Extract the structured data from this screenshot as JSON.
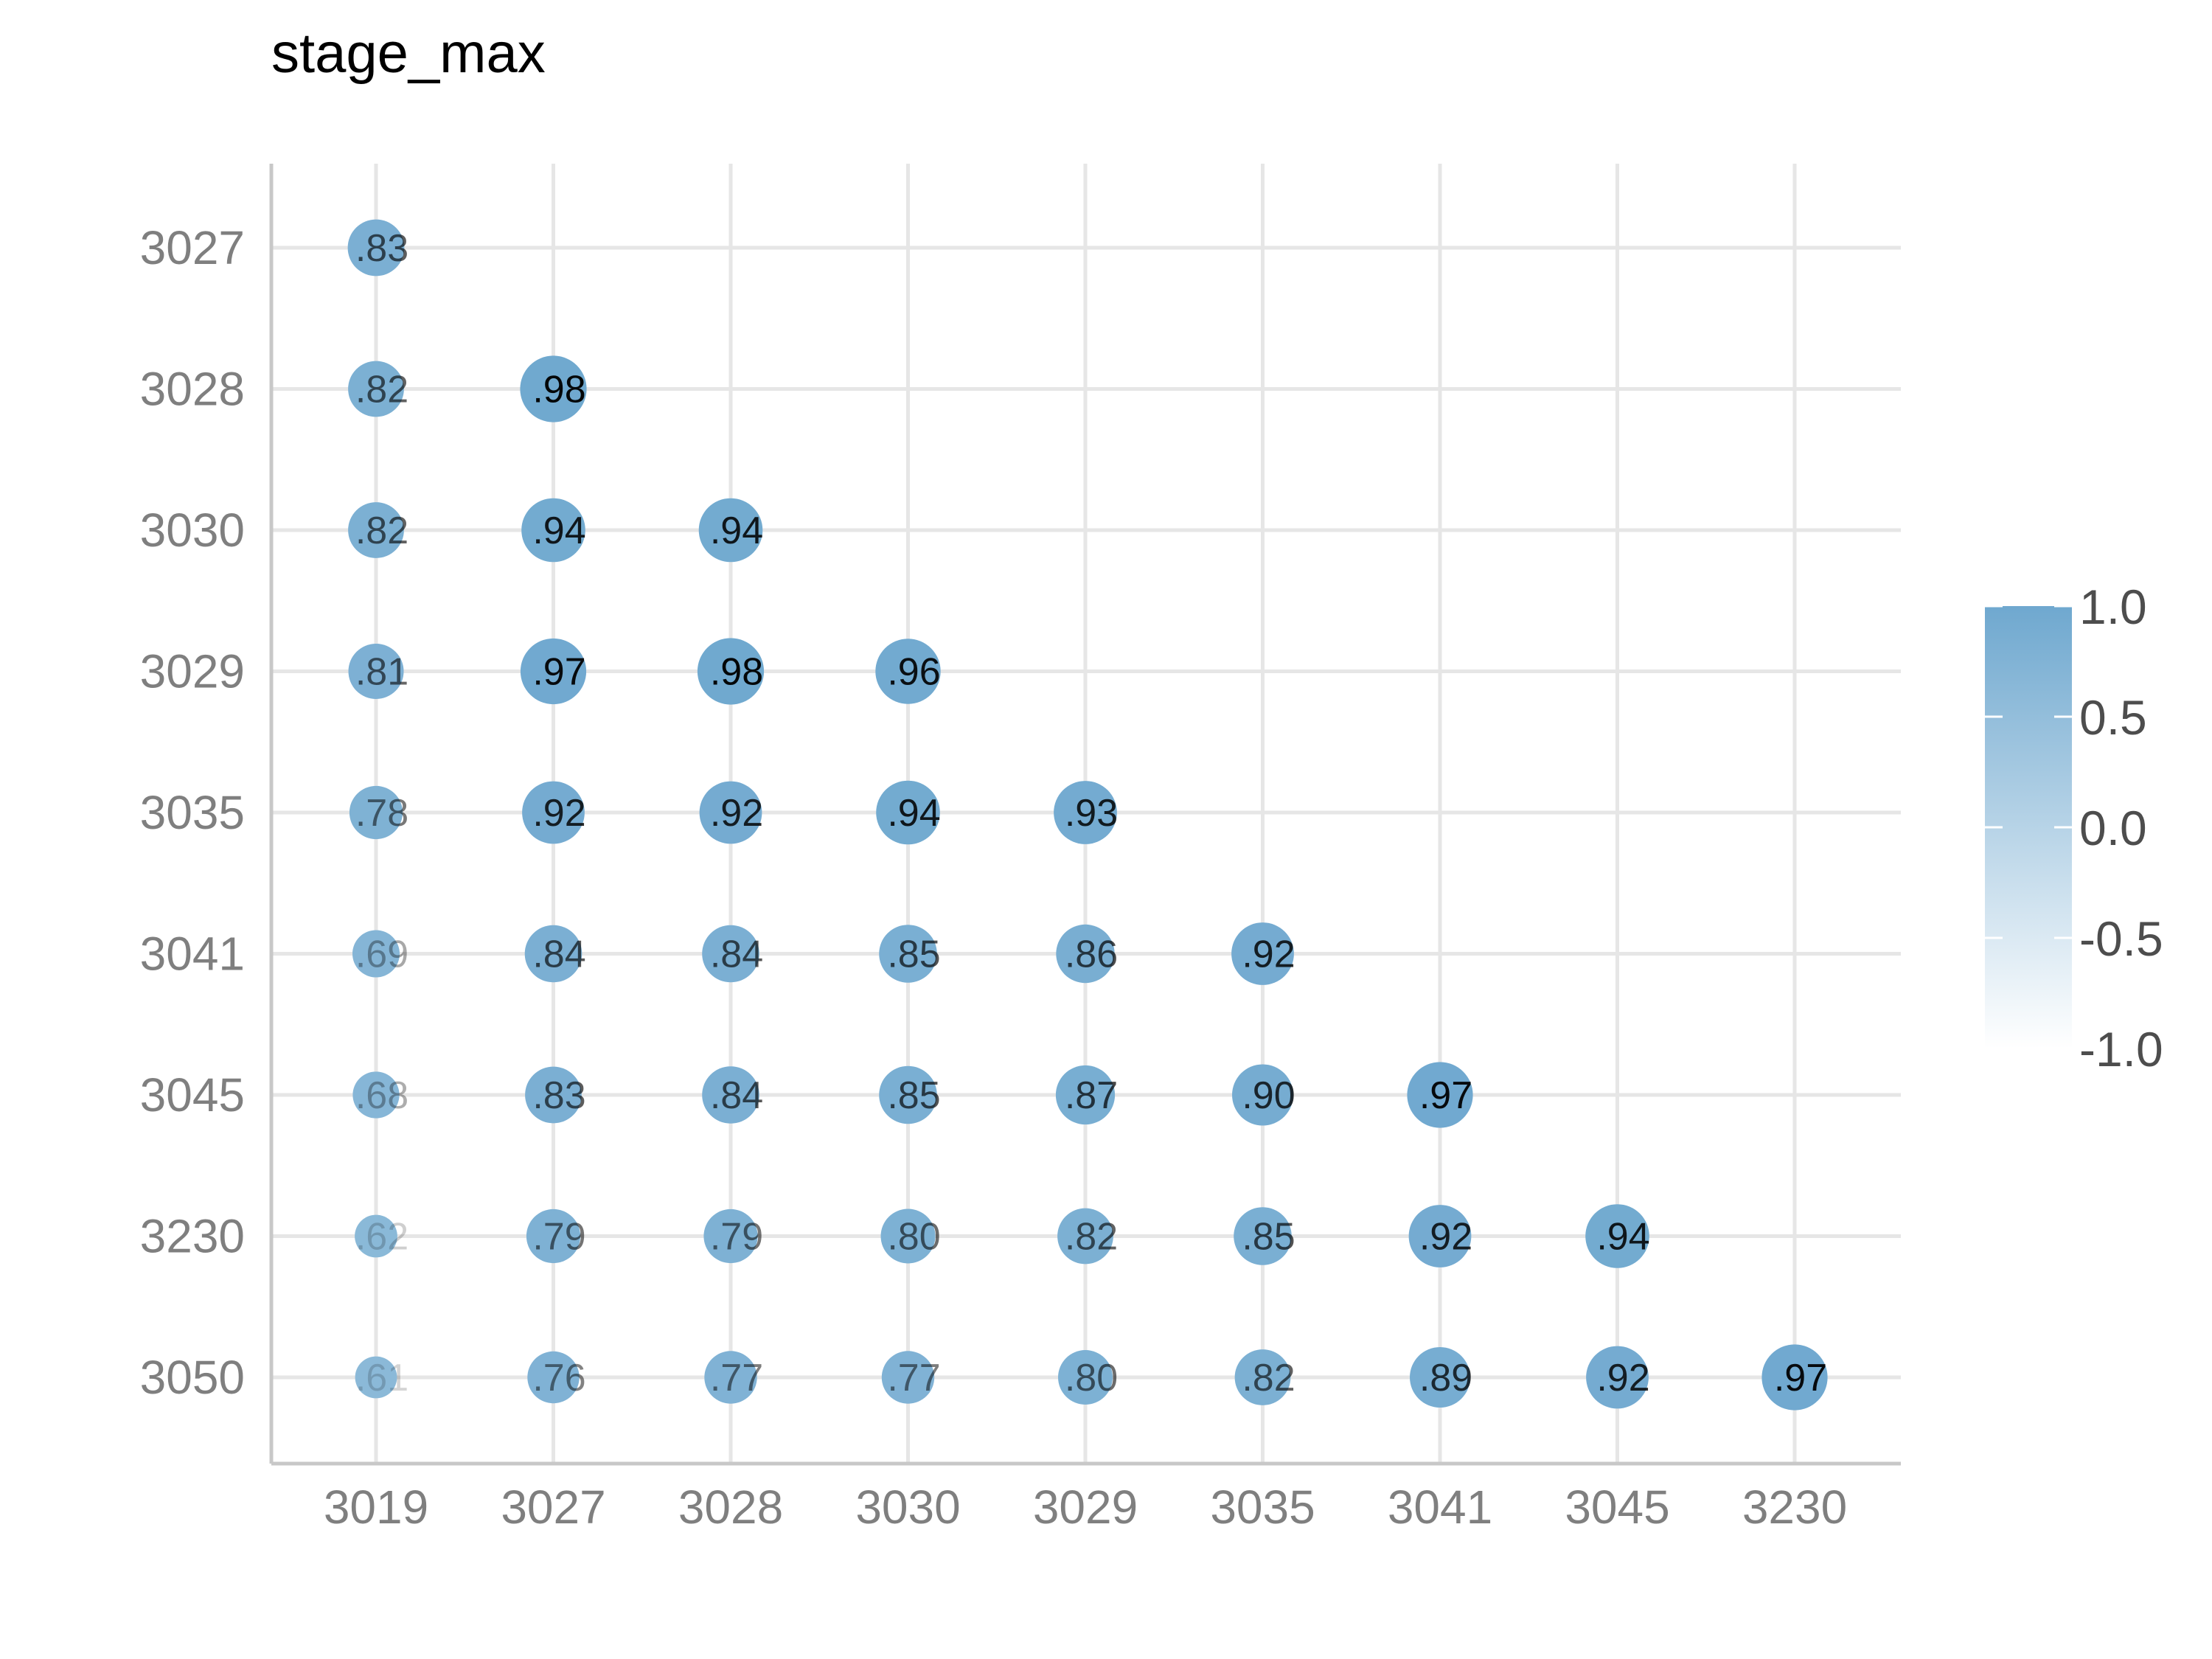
{
  "chart_data": {
    "type": "correlation-dot-matrix",
    "title": "stage_max",
    "x_categories": [
      "3019",
      "3027",
      "3028",
      "3030",
      "3029",
      "3035",
      "3041",
      "3045",
      "3230"
    ],
    "y_categories": [
      "3027",
      "3028",
      "3030",
      "3029",
      "3035",
      "3041",
      "3045",
      "3230",
      "3050"
    ],
    "values": [
      [
        0.83
      ],
      [
        0.82,
        0.98
      ],
      [
        0.82,
        0.94,
        0.94
      ],
      [
        0.81,
        0.97,
        0.98,
        0.96
      ],
      [
        0.78,
        0.92,
        0.92,
        0.94,
        0.93
      ],
      [
        0.69,
        0.84,
        0.84,
        0.85,
        0.86,
        0.92
      ],
      [
        0.68,
        0.83,
        0.84,
        0.85,
        0.87,
        0.9,
        0.97
      ],
      [
        0.62,
        0.79,
        0.79,
        0.8,
        0.82,
        0.85,
        0.92,
        0.94
      ],
      [
        0.61,
        0.76,
        0.77,
        0.77,
        0.8,
        0.82,
        0.89,
        0.92,
        0.97
      ]
    ],
    "labels": [
      [
        ".83"
      ],
      [
        ".82",
        ".98"
      ],
      [
        ".82",
        ".94",
        ".94"
      ],
      [
        ".81",
        ".97",
        ".98",
        ".96"
      ],
      [
        ".78",
        ".92",
        ".92",
        ".94",
        ".93"
      ],
      [
        ".69",
        ".84",
        ".84",
        ".85",
        ".86",
        ".92"
      ],
      [
        ".68",
        ".83",
        ".84",
        ".85",
        ".87",
        ".90",
        ".97"
      ],
      [
        ".62",
        ".79",
        ".79",
        ".80",
        ".82",
        ".85",
        ".92",
        ".94"
      ],
      [
        ".61",
        ".76",
        ".77",
        ".77",
        ".80",
        ".82",
        ".89",
        ".92",
        ".97"
      ]
    ],
    "legend": {
      "placement": "right",
      "ticks": [
        1.0,
        0.5,
        0.0,
        -0.5,
        -1.0
      ],
      "tick_labels": [
        "1.0",
        "0.5",
        "0.0",
        "-0.5",
        "-1.0"
      ],
      "range": [
        -1.0,
        1.0
      ]
    },
    "colors": {
      "high": "#6fa8cf",
      "low": "#ffffff",
      "grid": "#e6e6e6",
      "axis": "#c8c8c8"
    },
    "grid": true
  }
}
